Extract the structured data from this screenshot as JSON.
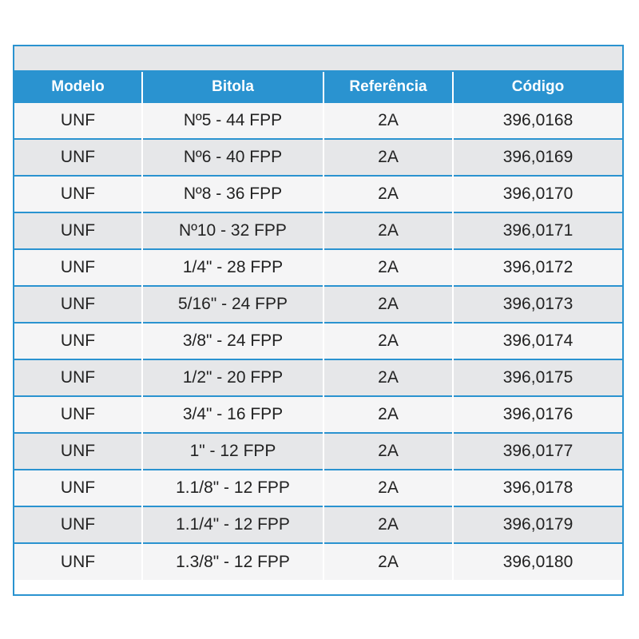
{
  "table": {
    "headers": [
      "Modelo",
      "Bitola",
      "Referência",
      "Código"
    ],
    "rows": [
      [
        "UNF",
        "Nº5 - 44 FPP",
        "2A",
        "396,0168"
      ],
      [
        "UNF",
        "Nº6 - 40 FPP",
        "2A",
        "396,0169"
      ],
      [
        "UNF",
        "Nº8 - 36 FPP",
        "2A",
        "396,0170"
      ],
      [
        "UNF",
        "Nº10 - 32 FPP",
        "2A",
        "396,0171"
      ],
      [
        "UNF",
        "1/4\" - 28 FPP",
        "2A",
        "396,0172"
      ],
      [
        "UNF",
        "5/16\" - 24 FPP",
        "2A",
        "396,0173"
      ],
      [
        "UNF",
        "3/8\" - 24 FPP",
        "2A",
        "396,0174"
      ],
      [
        "UNF",
        "1/2\" - 20 FPP",
        "2A",
        "396,0175"
      ],
      [
        "UNF",
        "3/4\" - 16 FPP",
        "2A",
        "396,0176"
      ],
      [
        "UNF",
        "1\" - 12 FPP",
        "2A",
        "396,0177"
      ],
      [
        "UNF",
        "1.1/8\" - 12 FPP",
        "2A",
        "396,0178"
      ],
      [
        "UNF",
        "1.1/4\" - 12 FPP",
        "2A",
        "396,0179"
      ],
      [
        "UNF",
        "1.3/8\" - 12 FPP",
        "2A",
        "396,0180"
      ]
    ]
  },
  "colors": {
    "header_bg": "#2a93d0",
    "header_text": "#ffffff",
    "row_light": "#f5f5f6",
    "row_dark": "#e6e7e9",
    "text": "#222222"
  }
}
